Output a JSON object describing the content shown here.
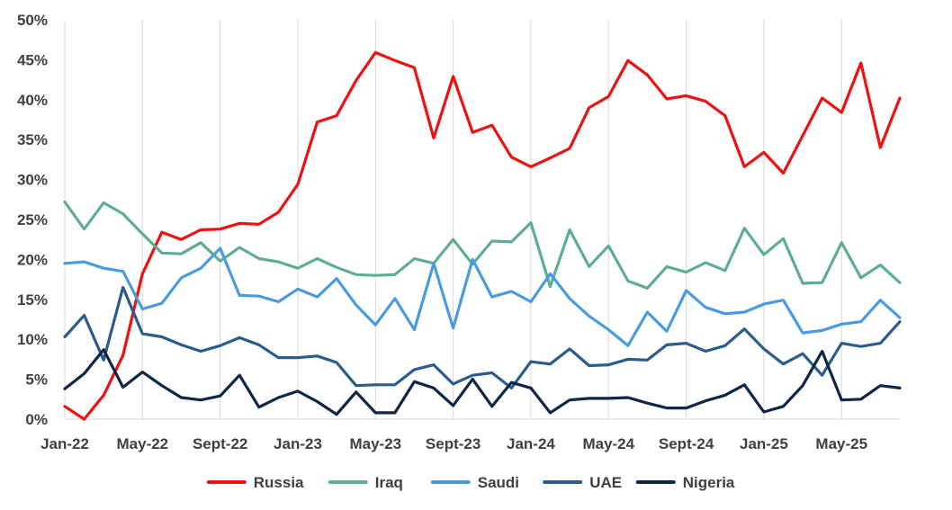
{
  "chart_data": {
    "type": "line",
    "x": [
      "Jan-22",
      "Feb-22",
      "Mar-22",
      "Apr-22",
      "May-22",
      "Jun-22",
      "Jul-22",
      "Aug-22",
      "Sept-22",
      "Oct-22",
      "Nov-22",
      "Dec-22",
      "Jan-23",
      "Feb-23",
      "Mar-23",
      "Apr-23",
      "May-23",
      "Jun-23",
      "Jul-23",
      "Aug-23",
      "Sept-23",
      "Oct-23",
      "Nov-23",
      "Dec-23",
      "Jan-24",
      "Feb-24",
      "Mar-24",
      "Apr-24",
      "May-24",
      "Jun-24",
      "Jul-24",
      "Aug-24",
      "Sept-24",
      "Oct-24",
      "Nov-24",
      "Dec-24",
      "Jan-25",
      "Feb-25",
      "Mar-25",
      "Apr-25",
      "May-25",
      "Jun-25",
      "Jul-25",
      "Aug-25"
    ],
    "x_tick_labels": [
      "Jan-22",
      "May-22",
      "Sept-22",
      "Jan-23",
      "May-23",
      "Sept-23",
      "Jan-24",
      "May-24",
      "Sept-24",
      "Jan-25",
      "May-25"
    ],
    "y_tick_labels": [
      "0%",
      "5%",
      "10%",
      "15%",
      "20%",
      "25%",
      "30%",
      "35%",
      "40%",
      "45%",
      "50%"
    ],
    "ylim": [
      0,
      50
    ],
    "y_unit": "%",
    "grid": "vertical",
    "legend_position": "bottom",
    "series": [
      {
        "name": "Russia",
        "color": "#ee1111",
        "values": [
          1.6,
          0.0,
          3.0,
          8.0,
          18.2,
          23.4,
          22.5,
          23.7,
          23.8,
          24.5,
          24.4,
          25.9,
          29.4,
          37.2,
          38.0,
          42.4,
          45.9,
          44.9,
          44.0,
          35.2,
          42.9,
          35.9,
          36.8,
          32.8,
          31.6,
          32.7,
          33.9,
          39.0,
          40.4,
          44.9,
          43.1,
          40.1,
          40.5,
          39.8,
          38.0,
          31.6,
          33.4,
          30.8,
          35.5,
          40.2,
          38.4,
          44.6,
          34.0,
          40.2
        ]
      },
      {
        "name": "Iraq",
        "color": "#5fae90",
        "values": [
          27.2,
          23.8,
          27.1,
          25.7,
          23.2,
          20.8,
          20.7,
          22.1,
          19.8,
          21.5,
          20.1,
          19.7,
          18.9,
          20.1,
          19.0,
          18.1,
          18.0,
          18.1,
          20.1,
          19.5,
          22.5,
          19.4,
          22.3,
          22.2,
          24.6,
          16.6,
          23.7,
          19.1,
          21.7,
          17.3,
          16.4,
          19.1,
          18.4,
          19.6,
          18.6,
          23.9,
          20.6,
          22.6,
          17.0,
          17.1,
          22.1,
          17.7,
          19.3,
          17.1
        ]
      },
      {
        "name": "Saudi",
        "color": "#4a9be0",
        "values": [
          19.5,
          19.7,
          18.9,
          18.5,
          13.8,
          14.5,
          17.7,
          18.9,
          21.4,
          15.5,
          15.4,
          14.7,
          16.3,
          15.3,
          17.6,
          14.3,
          11.8,
          15.1,
          11.2,
          19.5,
          11.4,
          20.0,
          15.3,
          16.0,
          14.7,
          18.2,
          15.1,
          12.9,
          11.2,
          9.2,
          13.4,
          11.0,
          16.1,
          14.0,
          13.2,
          13.4,
          14.4,
          14.9,
          10.8,
          11.1,
          11.9,
          12.2,
          14.9,
          12.7
        ]
      },
      {
        "name": "UAE",
        "color": "#2a5d8c",
        "values": [
          10.3,
          13.0,
          7.4,
          16.5,
          10.7,
          10.3,
          9.3,
          8.5,
          9.2,
          10.2,
          9.3,
          7.7,
          7.7,
          7.9,
          7.1,
          4.2,
          4.3,
          4.3,
          6.2,
          6.8,
          4.4,
          5.5,
          5.8,
          3.9,
          7.2,
          6.9,
          8.8,
          6.7,
          6.8,
          7.5,
          7.4,
          9.3,
          9.5,
          8.5,
          9.2,
          11.3,
          8.8,
          6.9,
          8.2,
          5.5,
          9.5,
          9.1,
          9.5,
          12.2
        ]
      },
      {
        "name": "Nigeria",
        "color": "#0f2747",
        "values": [
          3.8,
          5.7,
          8.7,
          4.0,
          5.9,
          4.2,
          2.7,
          2.4,
          2.9,
          5.5,
          1.5,
          2.7,
          3.5,
          2.2,
          0.6,
          3.4,
          0.8,
          0.8,
          4.7,
          3.9,
          1.7,
          5.0,
          1.6,
          4.6,
          3.9,
          0.8,
          2.4,
          2.6,
          2.6,
          2.7,
          2.0,
          1.4,
          1.4,
          2.3,
          3.0,
          4.3,
          0.9,
          1.6,
          4.2,
          8.5,
          2.4,
          2.5,
          4.2,
          3.9
        ]
      }
    ]
  }
}
